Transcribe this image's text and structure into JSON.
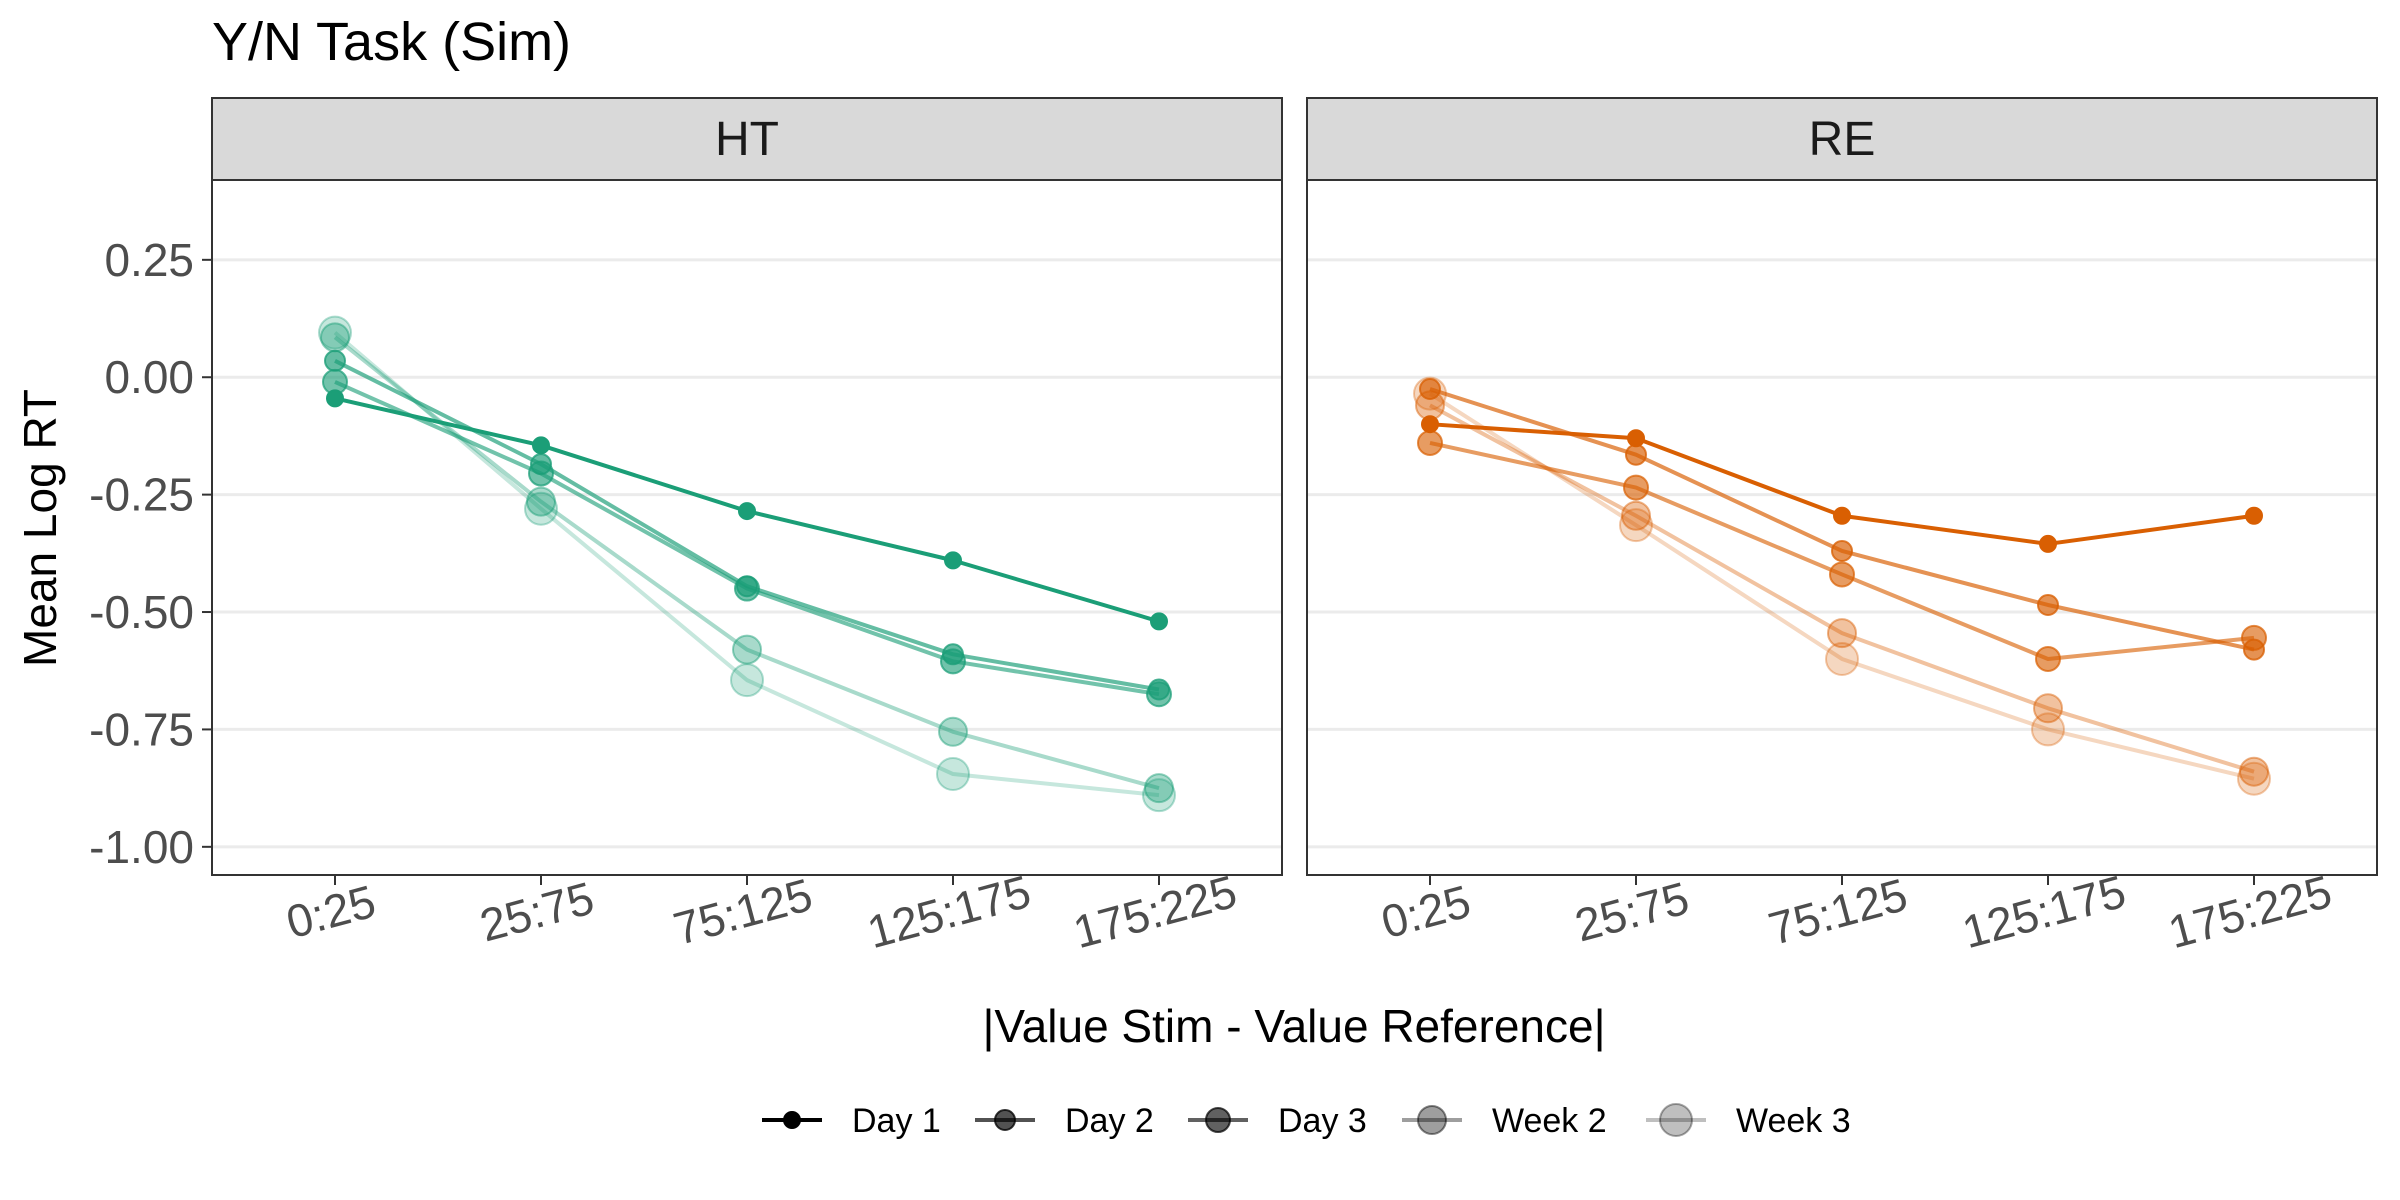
{
  "chart_data": {
    "type": "line",
    "title": "Y/N Task (Sim)",
    "xlabel": "|Value Stim - Value Reference|",
    "ylabel": "Mean Log RT",
    "categories": [
      "0:25",
      "25:75",
      "75:125",
      "125:175",
      "175:225"
    ],
    "y_ticks": [
      "0.25",
      "0.00",
      "-0.25",
      "-0.50",
      "-0.75",
      "-1.00"
    ],
    "ylim": [
      -1.06,
      0.42
    ],
    "grid": true,
    "legend_position": "bottom",
    "legend": [
      "Day 1",
      "Day 2",
      "Day 3",
      "Week 2",
      "Week 3"
    ],
    "panels": [
      {
        "label": "HT",
        "color": "#1b9e77",
        "series": [
          {
            "name": "Day 1",
            "values": [
              -0.045,
              -0.145,
              -0.285,
              -0.39,
              -0.52
            ]
          },
          {
            "name": "Day 2",
            "values": [
              0.035,
              -0.185,
              -0.445,
              -0.59,
              -0.665
            ]
          },
          {
            "name": "Day 3",
            "values": [
              -0.01,
              -0.205,
              -0.45,
              -0.605,
              -0.675
            ]
          },
          {
            "name": "Week 2",
            "values": [
              0.085,
              -0.265,
              -0.58,
              -0.755,
              -0.875
            ]
          },
          {
            "name": "Week 3",
            "values": [
              0.095,
              -0.28,
              -0.645,
              -0.845,
              -0.89
            ]
          }
        ]
      },
      {
        "label": "RE",
        "color": "#d95f02",
        "series": [
          {
            "name": "Day 1",
            "values": [
              -0.1,
              -0.13,
              -0.295,
              -0.355,
              -0.295
            ]
          },
          {
            "name": "Day 2",
            "values": [
              -0.025,
              -0.165,
              -0.37,
              -0.485,
              -0.58
            ]
          },
          {
            "name": "Day 3",
            "values": [
              -0.14,
              -0.235,
              -0.42,
              -0.6,
              -0.555
            ]
          },
          {
            "name": "Week 2",
            "values": [
              -0.06,
              -0.295,
              -0.545,
              -0.705,
              -0.84
            ]
          },
          {
            "name": "Week 3",
            "values": [
              -0.035,
              -0.315,
              -0.6,
              -0.75,
              -0.855
            ]
          }
        ]
      }
    ]
  }
}
